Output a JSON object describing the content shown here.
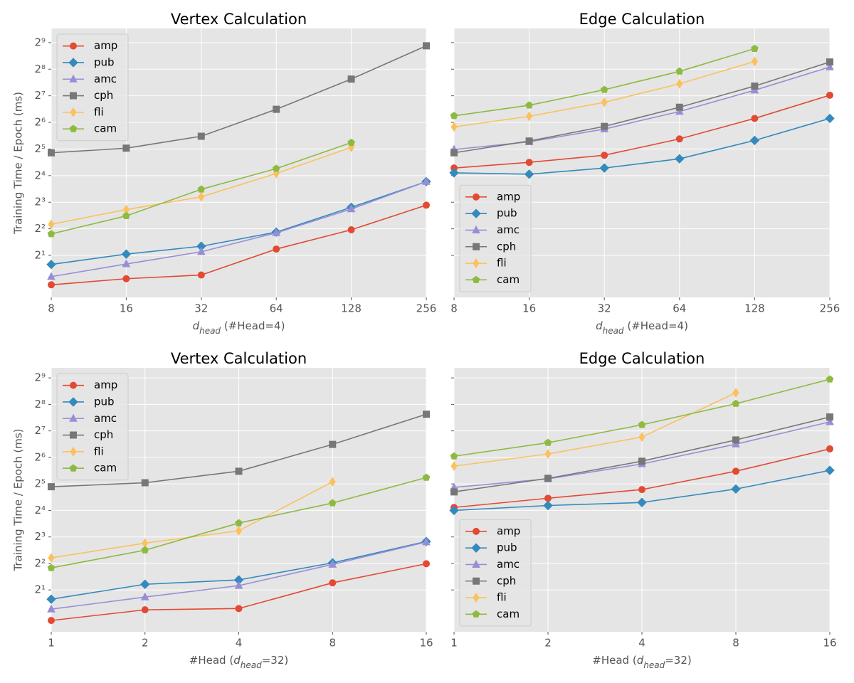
{
  "chart_data": [
    {
      "type": "line",
      "title": "Vertex Calculation",
      "ylabel": "Training Time / Epoch (ms)",
      "xlabel": [
        {
          "text": "d",
          "style": "italic"
        },
        {
          "text": "head",
          "style": "sub"
        },
        {
          "text": " (#Head=4)"
        }
      ],
      "x": [
        8,
        16,
        32,
        64,
        128,
        256
      ],
      "xlim": [
        8,
        256
      ],
      "xticks": [
        8,
        16,
        32,
        64,
        128,
        256
      ],
      "ylim": [
        0.67,
        740
      ],
      "log_x": 2,
      "log_y": 2,
      "grid": true,
      "legend": "upper left",
      "show_ytick_labels": true,
      "yticks": [
        {
          "value": 2,
          "label": "2¹"
        },
        {
          "value": 4,
          "label": "2²"
        },
        {
          "value": 8,
          "label": "2³"
        },
        {
          "value": 16,
          "label": "2⁴"
        },
        {
          "value": 32,
          "label": "2⁵"
        },
        {
          "value": 64,
          "label": "2⁶"
        },
        {
          "value": 128,
          "label": "2⁷"
        },
        {
          "value": 256,
          "label": "2⁸"
        },
        {
          "value": 512,
          "label": "2⁹"
        }
      ],
      "series": [
        {
          "name": "amp",
          "color": "#E24A33",
          "marker": "o",
          "values": [
            0.93,
            1.09,
            1.2,
            2.36,
            3.9,
            7.4
          ]
        },
        {
          "name": "pub",
          "color": "#348ABD",
          "marker": "D",
          "values": [
            1.58,
            2.07,
            2.54,
            3.67,
            7.0,
            13.7
          ]
        },
        {
          "name": "amc",
          "color": "#988ED5",
          "marker": "^",
          "values": [
            1.15,
            1.6,
            2.2,
            3.6,
            6.7,
            13.7
          ]
        },
        {
          "name": "cph",
          "color": "#777777",
          "marker": "s",
          "values": [
            29,
            32.7,
            44.6,
            90,
            198,
            471
          ]
        },
        {
          "name": "fli",
          "color": "#FBC15E",
          "marker": "d",
          "values": [
            4.5,
            6.6,
            9.2,
            16.9,
            33.4,
            null
          ]
        },
        {
          "name": "cam",
          "color": "#8EBA42",
          "marker": "p",
          "values": [
            3.5,
            5.6,
            11.2,
            19.2,
            37.8,
            null
          ]
        }
      ]
    },
    {
      "type": "line",
      "title": "Edge Calculation",
      "xlabel": [
        {
          "text": "d",
          "style": "italic"
        },
        {
          "text": "head",
          "style": "sub"
        },
        {
          "text": " (#Head=4)"
        }
      ],
      "x": [
        8,
        16,
        32,
        64,
        128,
        256
      ],
      "xlim": [
        8,
        256
      ],
      "xticks": [
        8,
        16,
        32,
        64,
        128,
        256
      ],
      "ylim": [
        0.67,
        740
      ],
      "log_x": 2,
      "log_y": 2,
      "grid": true,
      "legend": "lower left",
      "show_ytick_labels": false,
      "yticks": [
        2,
        4,
        8,
        16,
        32,
        64,
        128,
        256,
        512
      ],
      "series": [
        {
          "name": "amp",
          "color": "#E24A33",
          "marker": "o",
          "values": [
            19.5,
            22.6,
            27.2,
            41.6,
            71,
            130
          ]
        },
        {
          "name": "pub",
          "color": "#348ABD",
          "marker": "D",
          "values": [
            17.2,
            16.6,
            19.5,
            24.8,
            40,
            71
          ]
        },
        {
          "name": "amc",
          "color": "#988ED5",
          "marker": "^",
          "values": [
            31.6,
            38.6,
            53.8,
            85,
            148,
            271
          ]
        },
        {
          "name": "cph",
          "color": "#777777",
          "marker": "s",
          "values": [
            29,
            39.4,
            57.7,
            95,
            165,
            309
          ]
        },
        {
          "name": "fli",
          "color": "#FBC15E",
          "marker": "d",
          "values": [
            56.9,
            75,
            108,
            175,
            313,
            null
          ]
        },
        {
          "name": "cam",
          "color": "#8EBA42",
          "marker": "p",
          "values": [
            76,
            100,
            150,
            242,
            437,
            null
          ]
        }
      ]
    },
    {
      "type": "line",
      "title": "Vertex Calculation",
      "ylabel": "Training Time / Epoch (ms)",
      "xlabel": [
        {
          "text": "#Head ("
        },
        {
          "text": "d",
          "style": "italic"
        },
        {
          "text": "head",
          "style": "sub"
        },
        {
          "text": "=32)"
        }
      ],
      "x": [
        1,
        2,
        4,
        8,
        16
      ],
      "xlim": [
        1,
        16
      ],
      "xticks": [
        1,
        2,
        4,
        8,
        16
      ],
      "ylim": [
        0.67,
        666
      ],
      "log_x": 2,
      "log_y": 2,
      "grid": true,
      "legend": "upper left",
      "show_ytick_labels": true,
      "yticks": [
        {
          "value": 2,
          "label": "2¹"
        },
        {
          "value": 4,
          "label": "2²"
        },
        {
          "value": 8,
          "label": "2³"
        },
        {
          "value": 16,
          "label": "2⁴"
        },
        {
          "value": 32,
          "label": "2⁵"
        },
        {
          "value": 64,
          "label": "2⁶"
        },
        {
          "value": 128,
          "label": "2⁷"
        },
        {
          "value": 256,
          "label": "2⁸"
        },
        {
          "value": 512,
          "label": "2⁹"
        }
      ],
      "series": [
        {
          "name": "amp",
          "color": "#E24A33",
          "marker": "o",
          "values": [
            0.9,
            1.19,
            1.23,
            2.41,
            3.97
          ]
        },
        {
          "name": "pub",
          "color": "#348ABD",
          "marker": "D",
          "values": [
            1.57,
            2.32,
            2.6,
            4.06,
            7.1
          ]
        },
        {
          "name": "amc",
          "color": "#988ED5",
          "marker": "^",
          "values": [
            1.21,
            1.66,
            2.24,
            3.9,
            7.0
          ]
        },
        {
          "name": "cph",
          "color": "#777777",
          "marker": "s",
          "values": [
            29.7,
            33,
            44.6,
            90,
            198
          ]
        },
        {
          "name": "fli",
          "color": "#FBC15E",
          "marker": "d",
          "values": [
            4.63,
            6.8,
            9.4,
            33.8,
            null
          ]
        },
        {
          "name": "cam",
          "color": "#8EBA42",
          "marker": "p",
          "values": [
            3.56,
            5.66,
            11.5,
            19.4,
            37.8
          ]
        }
      ]
    },
    {
      "type": "line",
      "title": "Edge Calculation",
      "xlabel": [
        {
          "text": "#Head ("
        },
        {
          "text": "d",
          "style": "italic"
        },
        {
          "text": "head",
          "style": "sub"
        },
        {
          "text": "=32)"
        }
      ],
      "x": [
        1,
        2,
        4,
        8,
        16
      ],
      "xlim": [
        1,
        16
      ],
      "xticks": [
        1,
        2,
        4,
        8,
        16
      ],
      "ylim": [
        0.67,
        666
      ],
      "log_x": 2,
      "log_y": 2,
      "grid": true,
      "legend": "lower left",
      "show_ytick_labels": false,
      "yticks": [
        2,
        4,
        8,
        16,
        32,
        64,
        128,
        256,
        512
      ],
      "series": [
        {
          "name": "amp",
          "color": "#E24A33",
          "marker": "o",
          "values": [
            17.3,
            22,
            27.6,
            44.6,
            80
          ]
        },
        {
          "name": "pub",
          "color": "#348ABD",
          "marker": "D",
          "values": [
            16,
            18.2,
            19.7,
            28,
            45.6
          ]
        },
        {
          "name": "amc",
          "color": "#988ED5",
          "marker": "^",
          "values": [
            29.2,
            36.5,
            53.9,
            90.5,
            162
          ]
        },
        {
          "name": "cph",
          "color": "#777777",
          "marker": "s",
          "values": [
            26,
            37,
            58,
            101,
            184
          ]
        },
        {
          "name": "fli",
          "color": "#FBC15E",
          "marker": "d",
          "values": [
            51,
            70,
            109,
            347,
            null
          ]
        },
        {
          "name": "cam",
          "color": "#8EBA42",
          "marker": "p",
          "values": [
            66,
            94,
            150,
            261,
            494
          ]
        }
      ]
    }
  ]
}
